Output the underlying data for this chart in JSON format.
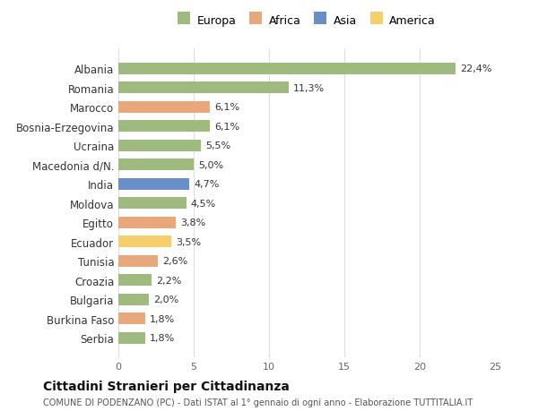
{
  "categories": [
    "Serbia",
    "Burkina Faso",
    "Bulgaria",
    "Croazia",
    "Tunisia",
    "Ecuador",
    "Egitto",
    "Moldova",
    "India",
    "Macedonia d/N.",
    "Ucraina",
    "Bosnia-Erzegovina",
    "Marocco",
    "Romania",
    "Albania"
  ],
  "values": [
    1.8,
    1.8,
    2.0,
    2.2,
    2.6,
    3.5,
    3.8,
    4.5,
    4.7,
    5.0,
    5.5,
    6.1,
    6.1,
    11.3,
    22.4
  ],
  "labels": [
    "1,8%",
    "1,8%",
    "2,0%",
    "2,2%",
    "2,6%",
    "3,5%",
    "3,8%",
    "4,5%",
    "4,7%",
    "5,0%",
    "5,5%",
    "6,1%",
    "6,1%",
    "11,3%",
    "22,4%"
  ],
  "continents": [
    "Europa",
    "Africa",
    "Europa",
    "Europa",
    "Africa",
    "America",
    "Africa",
    "Europa",
    "Asia",
    "Europa",
    "Europa",
    "Europa",
    "Africa",
    "Europa",
    "Europa"
  ],
  "colors": {
    "Europa": "#9eba7e",
    "Africa": "#e8a87c",
    "Asia": "#6a8fc8",
    "America": "#f5cf6b"
  },
  "legend_order": [
    "Europa",
    "Africa",
    "Asia",
    "America"
  ],
  "legend_colors": [
    "#9eba7e",
    "#e8a87c",
    "#6a8fc8",
    "#f5cf6b"
  ],
  "title": "Cittadini Stranieri per Cittadinanza",
  "subtitle": "COMUNE DI PODENZANO (PC) - Dati ISTAT al 1° gennaio di ogni anno - Elaborazione TUTTITALIA.IT",
  "xlim": [
    0,
    25
  ],
  "xticks": [
    0,
    5,
    10,
    15,
    20,
    25
  ],
  "bg_color": "#ffffff",
  "grid_color": "#dddddd",
  "bar_height": 0.6
}
